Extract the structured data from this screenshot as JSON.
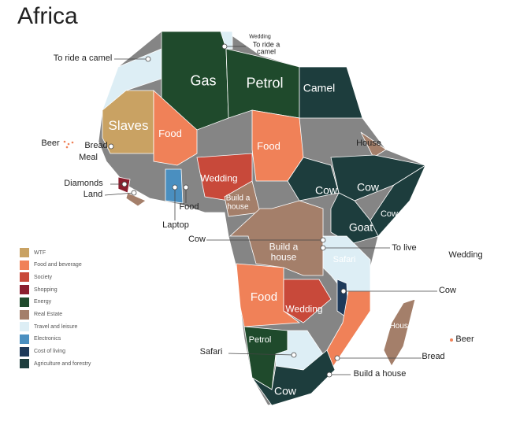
{
  "title": "Africa",
  "legend": [
    {
      "label": "WTF",
      "color": "#c9a263"
    },
    {
      "label": "Food and beverage",
      "color": "#f08158"
    },
    {
      "label": "Society",
      "color": "#c8493a"
    },
    {
      "label": "Shopping",
      "color": "#8b1e2e"
    },
    {
      "label": "Energy",
      "color": "#1f4a2c"
    },
    {
      "label": "Real Estate",
      "color": "#a47f6a"
    },
    {
      "label": "Travel and leisure",
      "color": "#ddeef5"
    },
    {
      "label": "Electronics",
      "color": "#4a8fc0"
    },
    {
      "label": "Cost of living",
      "color": "#1e3a5a"
    },
    {
      "label": "Agriculture and forestry",
      "color": "#1d3d3d"
    }
  ],
  "labels": [
    "Gas",
    "Petrol",
    "Camel",
    "Slaves",
    "Food",
    "Food",
    "House",
    "Cow",
    "Cow",
    "Cow",
    "Goat",
    "Wedding",
    "Build a house",
    "Build a house",
    "Safari",
    "Food",
    "Wedding",
    "House",
    "Petrol",
    "Cow",
    "To ride a camel",
    "Wedding",
    "To ride a camel",
    "Beer",
    "Bread",
    "Meal",
    "Diamonds",
    "Land",
    "Food",
    "Laptop",
    "Cow",
    "To live",
    "Wedding",
    "Cow",
    "Beer",
    "Bread",
    "Safari",
    "Build a house"
  ]
}
